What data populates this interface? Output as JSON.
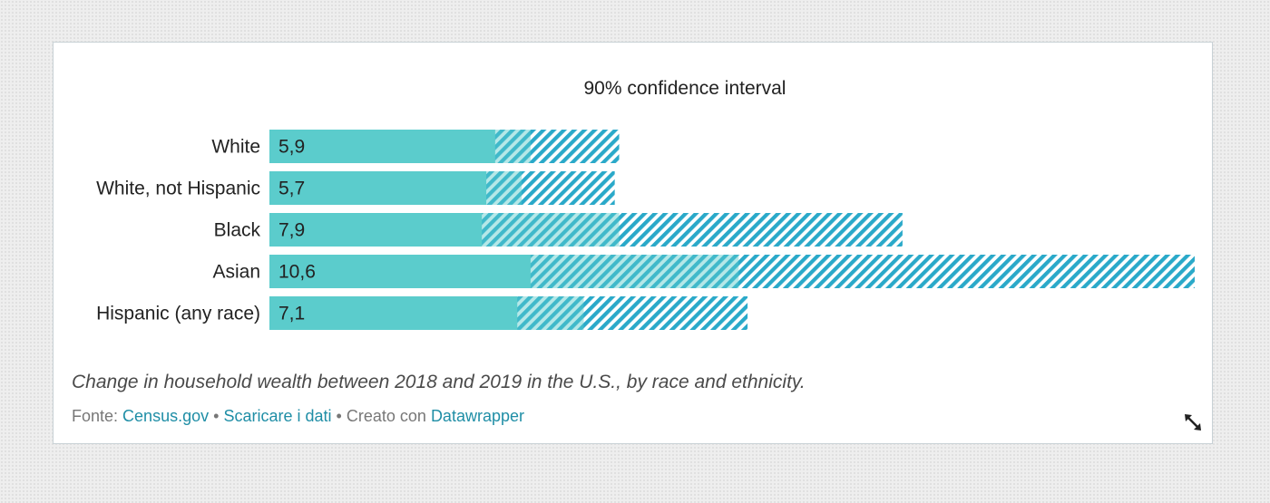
{
  "chart_data": {
    "type": "bar",
    "categories": [
      "White",
      "White, not Hispanic",
      "Black",
      "Asian",
      "Hispanic (any race)"
    ],
    "values": [
      5.9,
      5.7,
      7.9,
      10.6,
      7.1
    ],
    "value_labels": [
      "5,9",
      "5,7",
      "7,9",
      "10,6",
      "7,1"
    ],
    "ci_low": [
      5.1,
      4.9,
      4.8,
      5.9,
      5.6
    ],
    "ci_high": [
      7.9,
      7.8,
      14.3,
      20.9,
      10.8
    ],
    "ci_title": "90% confidence interval",
    "x_domain": [
      0,
      20.9
    ],
    "colors": {
      "bar": "#5bcccc",
      "ci_stripe": "#2aa9c9"
    }
  },
  "caption": "Change in household wealth between 2018 and 2019 in the U.S., by race and ethnicity.",
  "footer": {
    "source_prefix": "Fonte:",
    "source_link": "Census.gov",
    "separator": "•",
    "download_link": "Scaricare i dati",
    "created_with": "Creato con",
    "tool_link": "Datawrapper"
  },
  "icons": {
    "expand": "expand-arrows-icon"
  }
}
